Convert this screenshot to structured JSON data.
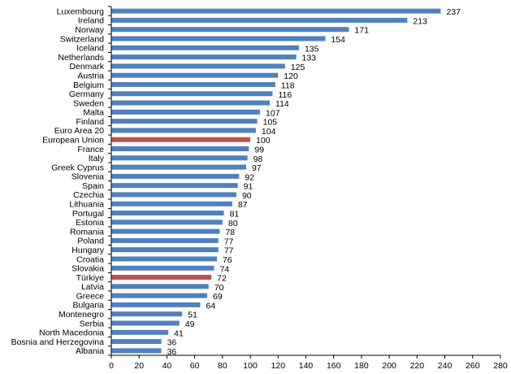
{
  "chart_data": {
    "type": "bar",
    "orientation": "horizontal",
    "categories": [
      "Luxembourg",
      "Ireland",
      "Norway",
      "Switzerland",
      "Iceland",
      "Netherlands",
      "Denmark",
      "Austria",
      "Belgium",
      "Germany",
      "Sweden",
      "Malta",
      "Finland",
      "Euro Area 20",
      "European Union",
      "France",
      "Italy",
      "Greek Cyprus",
      "Slovenia",
      "Spain",
      "Czechia",
      "Lithuania",
      "Portugal",
      "Estonia",
      "Romania",
      "Poland",
      "Hungary",
      "Croatia",
      "Slovakia",
      "Türkiye",
      "Latvia",
      "Greece",
      "Bulgaria",
      "Montenegro",
      "Serbia",
      "North Macedonia",
      "Bosnia and Herzegovina",
      "Albania"
    ],
    "values": [
      237,
      213,
      171,
      154,
      135,
      133,
      125,
      120,
      118,
      116,
      114,
      107,
      105,
      104,
      100,
      99,
      98,
      97,
      92,
      91,
      90,
      87,
      81,
      80,
      78,
      77,
      77,
      76,
      74,
      72,
      70,
      69,
      64,
      51,
      49,
      41,
      36,
      36
    ],
    "highlighted": [
      "European Union",
      "Türkiye"
    ],
    "xlim": [
      0,
      280
    ],
    "xticks": [
      0,
      20,
      40,
      60,
      80,
      100,
      120,
      140,
      160,
      180,
      200,
      220,
      240,
      260,
      280
    ],
    "colors": {
      "bar": "#4f81bd",
      "highlight": "#c0504d"
    },
    "grid": false,
    "title": "",
    "xlabel": "",
    "ylabel": ""
  }
}
